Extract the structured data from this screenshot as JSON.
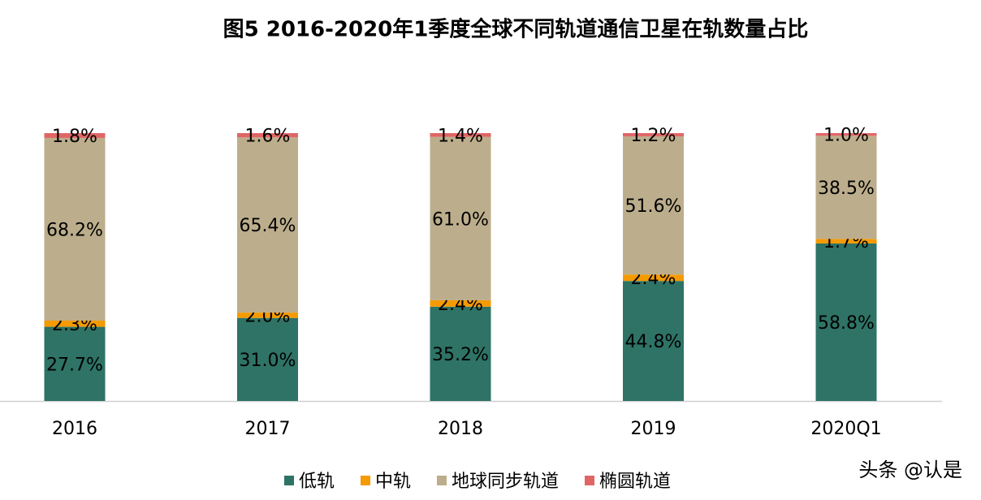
{
  "chart_data": {
    "type": "stacked_bar",
    "title": "图5  2016-2020年1季度全球不同轨道通信卫星在轨数量占比",
    "categories": [
      "2016",
      "2017",
      "2018",
      "2019",
      "2020Q1"
    ],
    "ylim": [
      0,
      100
    ],
    "series": [
      {
        "name": "低轨",
        "color": "#2e7366",
        "values": [
          27.7,
          31.0,
          35.2,
          44.8,
          58.8
        ],
        "value_labels": [
          "27.7%",
          "31.0%",
          "35.2%",
          "44.8%",
          "58.8%"
        ]
      },
      {
        "name": "中轨",
        "color": "#f59a00",
        "values": [
          2.3,
          2.0,
          2.4,
          2.4,
          1.7
        ],
        "value_labels": [
          "2.3%",
          "2.0%",
          "2.4%",
          "2.4%",
          "1.7%"
        ]
      },
      {
        "name": "地球同步轨道",
        "color": "#bcae8c",
        "values": [
          68.2,
          65.4,
          61.0,
          51.6,
          38.5
        ],
        "value_labels": [
          "68.2%",
          "65.4%",
          "61.0%",
          "51.6%",
          "38.5%"
        ]
      },
      {
        "name": "椭圆轨道",
        "color": "#e06666",
        "values": [
          1.8,
          1.6,
          1.4,
          1.2,
          1.0
        ],
        "value_labels": [
          "1.8%",
          "1.6%",
          "1.4%",
          "1.2%",
          "1.0%"
        ]
      }
    ],
    "legend": "bottom",
    "watermark": "头条 @认是"
  }
}
